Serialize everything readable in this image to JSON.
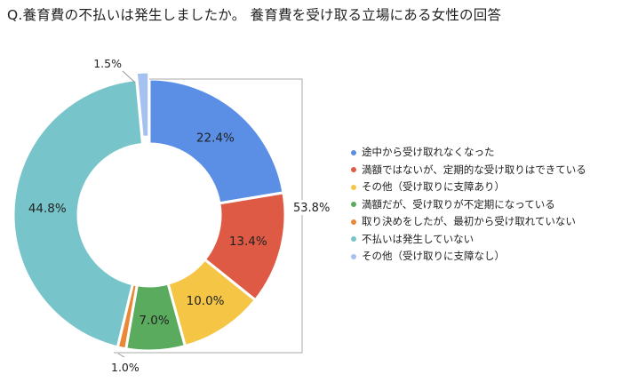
{
  "title": "Q.養育費の不払いは発生しましたか。 養育費を受け取る立場にある女性の回答",
  "chart_data": {
    "type": "donut",
    "series": [
      {
        "label": "途中から受け取れなくなった",
        "value": 22.4,
        "value_label": "22.4%",
        "color": "#5b8fe6"
      },
      {
        "label": "満額ではないが、定期的な受け取りはできている",
        "value": 13.4,
        "value_label": "13.4%",
        "color": "#df5a45"
      },
      {
        "label": "その他（受け取りに支障あり）",
        "value": 10.0,
        "value_label": "10.0%",
        "color": "#f5c546"
      },
      {
        "label": "満額だが、受け取りが不定期になっている",
        "value": 7.0,
        "value_label": "7.0%",
        "color": "#5aab5e"
      },
      {
        "label": "取り決めをしたが、最初から受け取れていない",
        "value": 1.0,
        "value_label": "1.0%",
        "color": "#ea8838"
      },
      {
        "label": "不払いは発生していない",
        "value": 44.8,
        "value_label": "44.8%",
        "color": "#77c5ca"
      },
      {
        "label": "その他（受け取りに支障なし）",
        "value": 1.5,
        "value_label": "1.5%",
        "color": "#a5c1f0"
      }
    ],
    "bracket_total_label": "53.8%",
    "legend_position": "right"
  }
}
